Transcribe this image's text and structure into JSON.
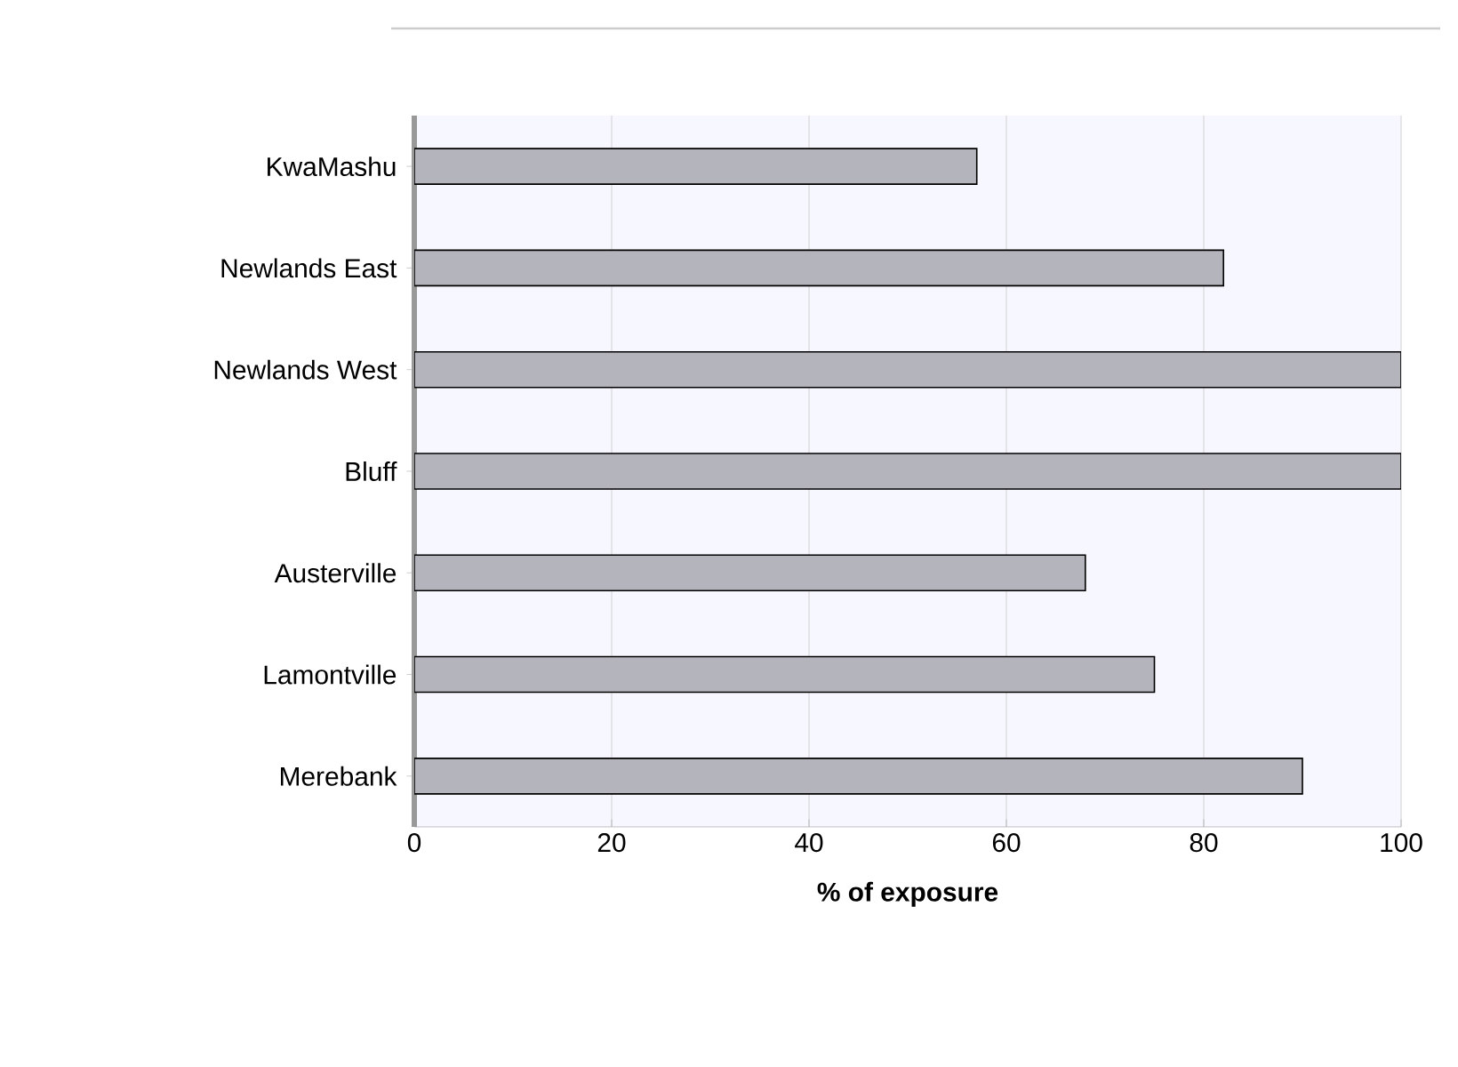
{
  "chart_data": {
    "type": "bar",
    "orientation": "horizontal",
    "categories": [
      "KwaMashu",
      "Newlands East",
      "Newlands West",
      "Bluff",
      "Austerville",
      "Lamontville",
      "Merebank"
    ],
    "values": [
      57,
      82,
      100,
      100,
      68,
      75,
      90
    ],
    "color": "#b4b4bc",
    "xlabel": "% of exposure",
    "xlim": [
      0,
      100
    ],
    "xticks": [
      0,
      20,
      40,
      60,
      80,
      100
    ],
    "grid": "x"
  }
}
